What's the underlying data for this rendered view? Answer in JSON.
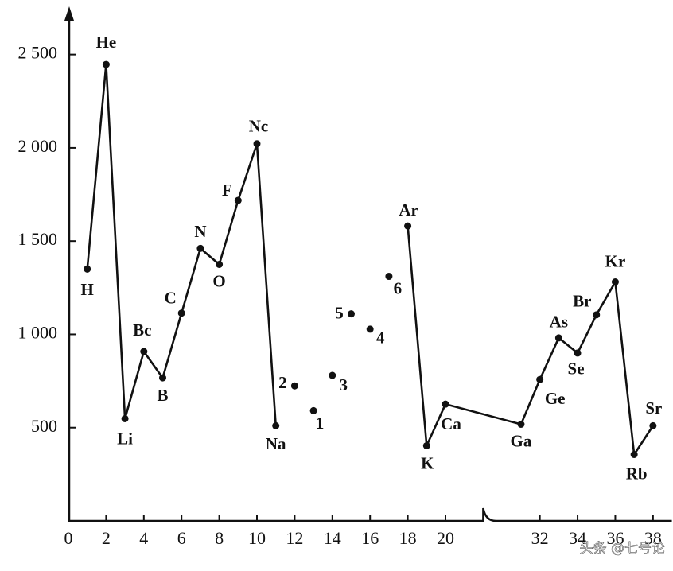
{
  "chart_data": {
    "type": "line",
    "xlim": [
      0,
      39
    ],
    "x_break": [
      22,
      29.5
    ],
    "xticks": [
      0,
      2,
      4,
      6,
      8,
      10,
      12,
      14,
      16,
      18,
      20,
      32,
      34,
      36,
      38
    ],
    "ylim": [
      0,
      2750
    ],
    "yticks": [
      500,
      {
        "value": 1000,
        "label": "1 000"
      },
      {
        "value": 1500,
        "label": "1 500"
      },
      {
        "value": 2000,
        "label": "2 000"
      },
      {
        "value": 2500,
        "label": "2 500"
      }
    ],
    "color": "#111111",
    "series": [
      {
        "connected": true,
        "x": [
          1,
          2,
          3,
          4,
          5,
          6,
          7,
          8,
          9,
          10,
          11
        ],
        "values": [
          1350,
          2447,
          548,
          908,
          767,
          1114,
          1461,
          1375,
          1718,
          2022,
          510
        ],
        "point_labels": [
          "H",
          "He",
          "Li",
          "Bc",
          "B",
          "C",
          "N",
          "O",
          "F",
          "Nc",
          "Na"
        ]
      },
      {
        "connected": false,
        "x": [
          12,
          13,
          14,
          15,
          16,
          17
        ],
        "values": [
          724,
          591,
          780,
          1110,
          1028,
          1311
        ],
        "point_labels": [
          "2",
          "1",
          "3",
          "5",
          "4",
          "6"
        ]
      },
      {
        "connected": true,
        "x": [
          18,
          19,
          20,
          31,
          32,
          33,
          34,
          35,
          36,
          37,
          38
        ],
        "values": [
          1581,
          403,
          626,
          518,
          758,
          981,
          900,
          1105,
          1281,
          356,
          510
        ],
        "point_labels": [
          "Ar",
          "K",
          "Ca",
          "Ga",
          "Ge",
          "As",
          "Se",
          "Br",
          "Kr",
          "Rb",
          "Sr"
        ]
      }
    ],
    "watermark": "头条 @七号论"
  }
}
